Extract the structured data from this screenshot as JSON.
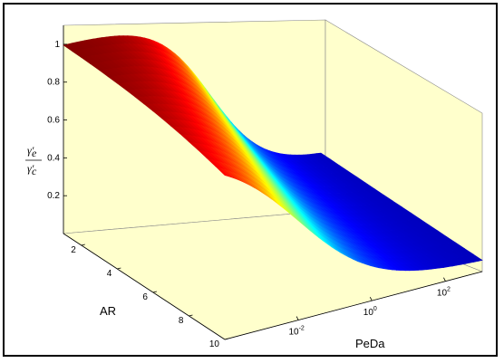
{
  "chart_data": {
    "type": "surface",
    "title": "",
    "xlabel": "PeDa",
    "ylabel": "AR",
    "zlabel": "γ'_e / γ'_c",
    "x_scale": "log",
    "x_range": [
      0.0001,
      1000
    ],
    "x_tick_labels": [
      "10^-2",
      "10^0",
      "10^2"
    ],
    "y_range": [
      1,
      10
    ],
    "y_tick_labels": [
      "2",
      "4",
      "6",
      "8",
      "10"
    ],
    "z_range": [
      0,
      1.1
    ],
    "z_tick_labels": [
      "0.2",
      "0.4",
      "0.6",
      "0.8",
      "1"
    ],
    "colormap": "jet",
    "grid": false,
    "pane_color": "#ffffcc",
    "surface": {
      "description_x": "PeDa from 1e-4 to 1e3",
      "ar_values": [
        1,
        2,
        3,
        4,
        5,
        6,
        7,
        8,
        9,
        10
      ],
      "low_PeDa_ratio": 1.0,
      "transition_PeDa_at_AR1": 1,
      "transition_PeDa_at_AR10": 0.01,
      "high_PeDa_ratio": 0.05
    }
  }
}
